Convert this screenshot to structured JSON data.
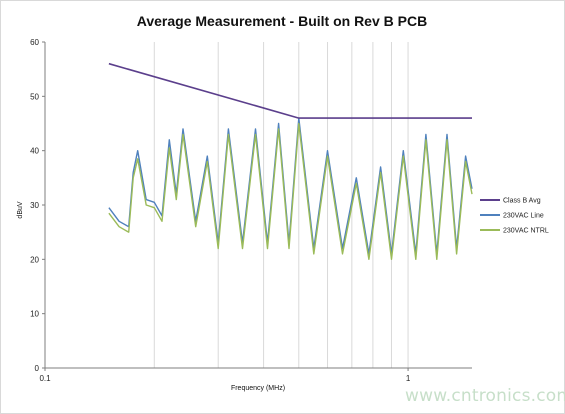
{
  "chart_data": {
    "type": "line",
    "title": "Average Measurement - Built on Rev B PCB",
    "xlabel": "Frequency (MHz)",
    "ylabel": "dBuV",
    "xscale": "log",
    "xlim": [
      0.1,
      1.5
    ],
    "ylim": [
      0,
      60
    ],
    "x_ticks": [
      "0.1",
      "1"
    ],
    "y_ticks": [
      "0",
      "10",
      "20",
      "30",
      "40",
      "50",
      "60"
    ],
    "grid": "vertical minor lines on log x axis",
    "legend_position": "right",
    "series": [
      {
        "name": "Class B Avg",
        "color": "#5b3f8c",
        "x": [
          0.15,
          0.5,
          1.5
        ],
        "y": [
          56,
          46,
          46
        ]
      },
      {
        "name": "230VAC Line",
        "color": "#4f81bd",
        "x": [
          0.15,
          0.16,
          0.17,
          0.175,
          0.18,
          0.19,
          0.2,
          0.21,
          0.22,
          0.23,
          0.24,
          0.26,
          0.28,
          0.3,
          0.32,
          0.35,
          0.38,
          0.41,
          0.44,
          0.47,
          0.5,
          0.55,
          0.6,
          0.66,
          0.72,
          0.78,
          0.84,
          0.9,
          0.97,
          1.05,
          1.12,
          1.2,
          1.28,
          1.36,
          1.44,
          1.5
        ],
        "y": [
          29.5,
          27,
          26,
          36,
          40,
          31,
          30.5,
          28,
          42,
          32,
          44,
          27,
          39,
          23,
          44,
          23,
          44,
          23,
          45,
          23,
          46,
          22,
          40,
          22,
          35,
          21,
          37,
          21,
          40,
          21,
          43,
          21,
          43,
          22,
          39,
          33
        ]
      },
      {
        "name": "230VAC NTRL",
        "color": "#9bbb59",
        "x": [
          0.15,
          0.16,
          0.17,
          0.175,
          0.18,
          0.19,
          0.2,
          0.21,
          0.22,
          0.23,
          0.24,
          0.26,
          0.28,
          0.3,
          0.32,
          0.35,
          0.38,
          0.41,
          0.44,
          0.47,
          0.5,
          0.55,
          0.6,
          0.66,
          0.72,
          0.78,
          0.84,
          0.9,
          0.97,
          1.05,
          1.12,
          1.2,
          1.28,
          1.36,
          1.44,
          1.5
        ],
        "y": [
          28.5,
          26,
          25,
          35,
          38.5,
          30,
          29.5,
          27,
          40.5,
          31,
          43,
          26,
          38,
          22,
          43,
          22,
          43,
          22,
          44,
          22,
          45,
          21,
          39,
          21,
          34,
          20,
          36,
          20,
          39,
          20,
          42,
          20,
          42,
          21,
          38,
          32
        ]
      }
    ]
  },
  "watermark": "www.cntronics.com"
}
